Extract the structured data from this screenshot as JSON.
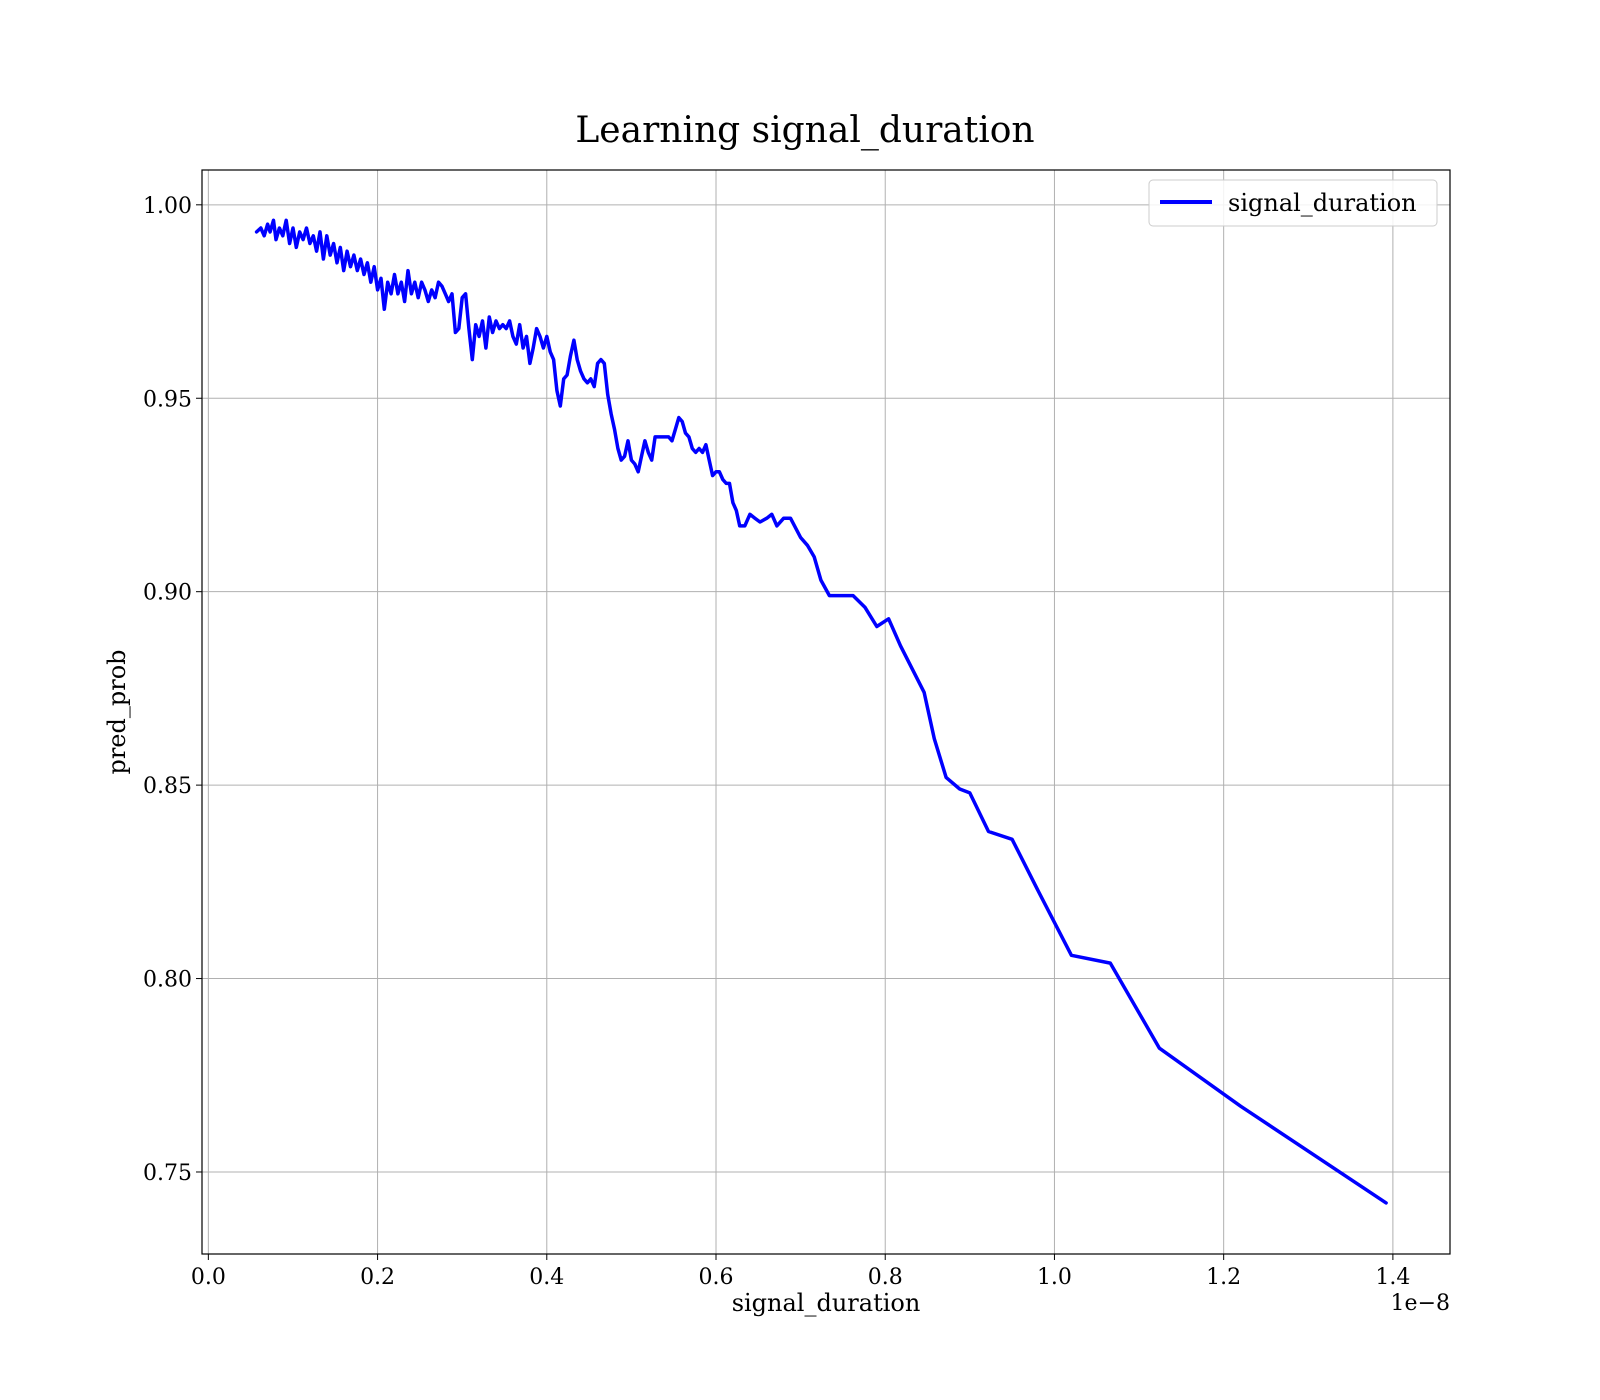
{
  "chart_data": {
    "type": "line",
    "title": "Learning signal_duration",
    "xlabel": "signal_duration",
    "ylabel": "pred_prob",
    "x_offset_label": "1e−8",
    "xlim": [
      -0.0075,
      1.4675
    ],
    "ylim": [
      0.7288,
      1.009
    ],
    "x_ticks": [
      0.0,
      0.2,
      0.4,
      0.6,
      0.8,
      1.0,
      1.2,
      1.4
    ],
    "x_tick_labels": [
      "0.0",
      "0.2",
      "0.4",
      "0.6",
      "0.8",
      "1.0",
      "1.2",
      "1.4"
    ],
    "y_ticks": [
      0.75,
      0.8,
      0.85,
      0.9,
      0.95,
      1.0
    ],
    "y_tick_labels": [
      "0.75",
      "0.80",
      "0.85",
      "0.90",
      "0.95",
      "1.00"
    ],
    "grid": true,
    "legend_position": "top-right",
    "series": [
      {
        "name": "signal_duration",
        "color": "#0000ff",
        "points": [
          [
            0.057,
            0.993
          ],
          [
            0.062,
            0.994
          ],
          [
            0.066,
            0.992
          ],
          [
            0.07,
            0.995
          ],
          [
            0.073,
            0.993
          ],
          [
            0.077,
            0.996
          ],
          [
            0.08,
            0.991
          ],
          [
            0.084,
            0.994
          ],
          [
            0.088,
            0.992
          ],
          [
            0.092,
            0.996
          ],
          [
            0.096,
            0.99
          ],
          [
            0.1,
            0.994
          ],
          [
            0.104,
            0.989
          ],
          [
            0.108,
            0.993
          ],
          [
            0.112,
            0.991
          ],
          [
            0.116,
            0.994
          ],
          [
            0.12,
            0.99
          ],
          [
            0.124,
            0.992
          ],
          [
            0.128,
            0.988
          ],
          [
            0.132,
            0.993
          ],
          [
            0.136,
            0.986
          ],
          [
            0.14,
            0.992
          ],
          [
            0.144,
            0.987
          ],
          [
            0.148,
            0.99
          ],
          [
            0.152,
            0.985
          ],
          [
            0.156,
            0.989
          ],
          [
            0.16,
            0.983
          ],
          [
            0.164,
            0.988
          ],
          [
            0.168,
            0.984
          ],
          [
            0.172,
            0.987
          ],
          [
            0.176,
            0.983
          ],
          [
            0.18,
            0.986
          ],
          [
            0.184,
            0.982
          ],
          [
            0.188,
            0.985
          ],
          [
            0.192,
            0.98
          ],
          [
            0.196,
            0.984
          ],
          [
            0.2,
            0.978
          ],
          [
            0.204,
            0.981
          ],
          [
            0.208,
            0.973
          ],
          [
            0.212,
            0.98
          ],
          [
            0.216,
            0.977
          ],
          [
            0.22,
            0.982
          ],
          [
            0.224,
            0.977
          ],
          [
            0.228,
            0.98
          ],
          [
            0.232,
            0.975
          ],
          [
            0.236,
            0.983
          ],
          [
            0.24,
            0.977
          ],
          [
            0.244,
            0.98
          ],
          [
            0.248,
            0.976
          ],
          [
            0.252,
            0.98
          ],
          [
            0.256,
            0.978
          ],
          [
            0.26,
            0.975
          ],
          [
            0.264,
            0.978
          ],
          [
            0.268,
            0.976
          ],
          [
            0.272,
            0.98
          ],
          [
            0.276,
            0.979
          ],
          [
            0.28,
            0.977
          ],
          [
            0.284,
            0.975
          ],
          [
            0.288,
            0.977
          ],
          [
            0.292,
            0.967
          ],
          [
            0.296,
            0.968
          ],
          [
            0.3,
            0.976
          ],
          [
            0.304,
            0.977
          ],
          [
            0.308,
            0.968
          ],
          [
            0.312,
            0.96
          ],
          [
            0.316,
            0.969
          ],
          [
            0.32,
            0.966
          ],
          [
            0.324,
            0.97
          ],
          [
            0.328,
            0.963
          ],
          [
            0.332,
            0.971
          ],
          [
            0.336,
            0.967
          ],
          [
            0.34,
            0.97
          ],
          [
            0.344,
            0.968
          ],
          [
            0.348,
            0.969
          ],
          [
            0.352,
            0.968
          ],
          [
            0.356,
            0.97
          ],
          [
            0.36,
            0.966
          ],
          [
            0.364,
            0.964
          ],
          [
            0.368,
            0.969
          ],
          [
            0.372,
            0.963
          ],
          [
            0.376,
            0.966
          ],
          [
            0.38,
            0.959
          ],
          [
            0.384,
            0.963
          ],
          [
            0.388,
            0.968
          ],
          [
            0.392,
            0.966
          ],
          [
            0.396,
            0.963
          ],
          [
            0.4,
            0.966
          ],
          [
            0.404,
            0.962
          ],
          [
            0.408,
            0.96
          ],
          [
            0.412,
            0.952
          ],
          [
            0.416,
            0.948
          ],
          [
            0.42,
            0.955
          ],
          [
            0.424,
            0.956
          ],
          [
            0.428,
            0.961
          ],
          [
            0.432,
            0.965
          ],
          [
            0.436,
            0.96
          ],
          [
            0.44,
            0.957
          ],
          [
            0.444,
            0.955
          ],
          [
            0.448,
            0.954
          ],
          [
            0.452,
            0.955
          ],
          [
            0.456,
            0.953
          ],
          [
            0.46,
            0.959
          ],
          [
            0.464,
            0.96
          ],
          [
            0.468,
            0.959
          ],
          [
            0.472,
            0.951
          ],
          [
            0.476,
            0.946
          ],
          [
            0.48,
            0.942
          ],
          [
            0.484,
            0.937
          ],
          [
            0.488,
            0.934
          ],
          [
            0.492,
            0.935
          ],
          [
            0.496,
            0.939
          ],
          [
            0.5,
            0.934
          ],
          [
            0.504,
            0.933
          ],
          [
            0.508,
            0.931
          ],
          [
            0.512,
            0.935
          ],
          [
            0.516,
            0.939
          ],
          [
            0.52,
            0.936
          ],
          [
            0.524,
            0.934
          ],
          [
            0.528,
            0.94
          ],
          [
            0.536,
            0.94
          ],
          [
            0.544,
            0.94
          ],
          [
            0.548,
            0.939
          ],
          [
            0.552,
            0.942
          ],
          [
            0.556,
            0.945
          ],
          [
            0.56,
            0.944
          ],
          [
            0.564,
            0.941
          ],
          [
            0.568,
            0.94
          ],
          [
            0.572,
            0.937
          ],
          [
            0.576,
            0.936
          ],
          [
            0.58,
            0.937
          ],
          [
            0.584,
            0.936
          ],
          [
            0.588,
            0.938
          ],
          [
            0.592,
            0.934
          ],
          [
            0.596,
            0.93
          ],
          [
            0.6,
            0.931
          ],
          [
            0.604,
            0.931
          ],
          [
            0.608,
            0.929
          ],
          [
            0.612,
            0.928
          ],
          [
            0.616,
            0.928
          ],
          [
            0.62,
            0.923
          ],
          [
            0.624,
            0.921
          ],
          [
            0.628,
            0.917
          ],
          [
            0.634,
            0.917
          ],
          [
            0.64,
            0.92
          ],
          [
            0.646,
            0.919
          ],
          [
            0.652,
            0.918
          ],
          [
            0.66,
            0.919
          ],
          [
            0.666,
            0.92
          ],
          [
            0.672,
            0.917
          ],
          [
            0.68,
            0.919
          ],
          [
            0.688,
            0.919
          ],
          [
            0.7,
            0.914
          ],
          [
            0.708,
            0.912
          ],
          [
            0.716,
            0.909
          ],
          [
            0.724,
            0.903
          ],
          [
            0.734,
            0.899
          ],
          [
            0.748,
            0.899
          ],
          [
            0.762,
            0.899
          ],
          [
            0.776,
            0.896
          ],
          [
            0.79,
            0.891
          ],
          [
            0.804,
            0.893
          ],
          [
            0.818,
            0.886
          ],
          [
            0.832,
            0.88
          ],
          [
            0.846,
            0.874
          ],
          [
            0.858,
            0.862
          ],
          [
            0.872,
            0.852
          ],
          [
            0.888,
            0.849
          ],
          [
            0.9,
            0.848
          ],
          [
            0.922,
            0.838
          ],
          [
            0.95,
            0.836
          ],
          [
            0.98,
            0.823
          ],
          [
            1.02,
            0.806
          ],
          [
            1.066,
            0.804
          ],
          [
            1.124,
            0.782
          ],
          [
            1.22,
            0.767
          ],
          [
            1.392,
            0.742
          ]
        ]
      }
    ]
  }
}
